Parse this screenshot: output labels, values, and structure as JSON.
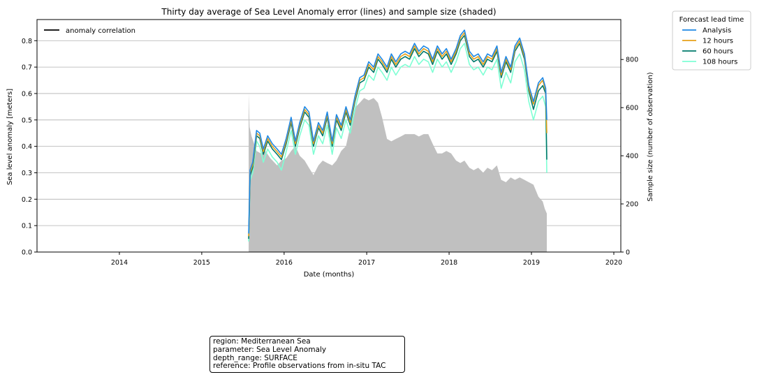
{
  "chart_data": {
    "type": "line",
    "title": "Thirty day average of Sea Level Anomaly error (lines) and sample size (shaded)",
    "xlabel": "Date (months)",
    "ylabel": "Sea level anomaly [meters]",
    "y2label": "Sample size (number of observation)",
    "xlim": [
      "2013-01-01",
      "2020-02-01"
    ],
    "ylim": [
      0.0,
      0.88
    ],
    "y2lim": [
      0,
      966
    ],
    "x_ticks": [
      "2014",
      "2015",
      "2016",
      "2017",
      "2018",
      "2019",
      "2020"
    ],
    "y_ticks": [
      "0.0",
      "0.1",
      "0.2",
      "0.3",
      "0.4",
      "0.5",
      "0.6",
      "0.7",
      "0.8"
    ],
    "y2_ticks": [
      "0",
      "200",
      "400",
      "600",
      "800"
    ],
    "grid": "horizontal",
    "legend_main": {
      "placement": "top-left",
      "label": "anomaly correlation",
      "color": "#000000"
    },
    "legend_lead": {
      "placement": "outside-top-right",
      "title": "Forecast lead time",
      "entries": [
        {
          "label": "Analysis",
          "color": "#1e88e5"
        },
        {
          "label": "12 hours",
          "color": "#e6a11a"
        },
        {
          "label": "60 hours",
          "color": "#00796b"
        },
        {
          "label": "108 hours",
          "color": "#7fffd4"
        }
      ]
    },
    "series": [
      {
        "name": "Analysis",
        "color": "#1e88e5",
        "x": [
          "2015-07-28",
          "2015-08-03",
          "2015-08-15",
          "2015-09-01",
          "2015-09-15",
          "2015-10-01",
          "2015-10-20",
          "2015-11-10",
          "2015-12-01",
          "2015-12-20",
          "2016-01-10",
          "2016-02-01",
          "2016-02-20",
          "2016-03-10",
          "2016-04-01",
          "2016-04-20",
          "2016-05-10",
          "2016-06-01",
          "2016-06-20",
          "2016-07-10",
          "2016-08-01",
          "2016-08-20",
          "2016-09-10",
          "2016-10-01",
          "2016-10-20",
          "2016-11-10",
          "2016-12-01",
          "2016-12-20",
          "2017-01-10",
          "2017-02-01",
          "2017-02-20",
          "2017-03-10",
          "2017-04-01",
          "2017-04-20",
          "2017-05-10",
          "2017-06-01",
          "2017-06-20",
          "2017-07-10",
          "2017-08-01",
          "2017-08-20",
          "2017-09-10",
          "2017-10-01",
          "2017-10-20",
          "2017-11-10",
          "2017-12-01",
          "2017-12-20",
          "2018-01-10",
          "2018-02-01",
          "2018-02-20",
          "2018-03-10",
          "2018-04-01",
          "2018-04-20",
          "2018-05-10",
          "2018-06-01",
          "2018-06-20",
          "2018-07-10",
          "2018-08-01",
          "2018-08-20",
          "2018-09-10",
          "2018-10-01",
          "2018-10-20",
          "2018-11-10",
          "2018-12-01",
          "2018-12-20",
          "2019-01-10",
          "2019-02-01",
          "2019-02-20",
          "2019-03-05",
          "2019-03-10"
        ],
        "values": [
          0.07,
          0.31,
          0.34,
          0.46,
          0.45,
          0.39,
          0.44,
          0.41,
          0.39,
          0.37,
          0.43,
          0.51,
          0.42,
          0.49,
          0.55,
          0.53,
          0.42,
          0.49,
          0.46,
          0.53,
          0.42,
          0.52,
          0.48,
          0.55,
          0.5,
          0.59,
          0.66,
          0.67,
          0.72,
          0.7,
          0.75,
          0.73,
          0.7,
          0.75,
          0.72,
          0.75,
          0.76,
          0.75,
          0.79,
          0.76,
          0.78,
          0.77,
          0.73,
          0.78,
          0.75,
          0.77,
          0.73,
          0.77,
          0.82,
          0.84,
          0.76,
          0.74,
          0.75,
          0.72,
          0.75,
          0.74,
          0.78,
          0.68,
          0.74,
          0.7,
          0.78,
          0.81,
          0.75,
          0.63,
          0.57,
          0.64,
          0.66,
          0.62,
          0.5
        ]
      },
      {
        "name": "12 hours",
        "color": "#e6a11a",
        "x": [
          "2015-07-28",
          "2015-08-03",
          "2015-08-15",
          "2015-09-01",
          "2015-09-15",
          "2015-10-01",
          "2015-10-20",
          "2015-11-10",
          "2015-12-01",
          "2015-12-20",
          "2016-01-10",
          "2016-02-01",
          "2016-02-20",
          "2016-03-10",
          "2016-04-01",
          "2016-04-20",
          "2016-05-10",
          "2016-06-01",
          "2016-06-20",
          "2016-07-10",
          "2016-08-01",
          "2016-08-20",
          "2016-09-10",
          "2016-10-01",
          "2016-10-20",
          "2016-11-10",
          "2016-12-01",
          "2016-12-20",
          "2017-01-10",
          "2017-02-01",
          "2017-02-20",
          "2017-03-10",
          "2017-04-01",
          "2017-04-20",
          "2017-05-10",
          "2017-06-01",
          "2017-06-20",
          "2017-07-10",
          "2017-08-01",
          "2017-08-20",
          "2017-09-10",
          "2017-10-01",
          "2017-10-20",
          "2017-11-10",
          "2017-12-01",
          "2017-12-20",
          "2018-01-10",
          "2018-02-01",
          "2018-02-20",
          "2018-03-10",
          "2018-04-01",
          "2018-04-20",
          "2018-05-10",
          "2018-06-01",
          "2018-06-20",
          "2018-07-10",
          "2018-08-01",
          "2018-08-20",
          "2018-09-10",
          "2018-10-01",
          "2018-10-20",
          "2018-11-10",
          "2018-12-01",
          "2018-12-20",
          "2019-01-10",
          "2019-02-01",
          "2019-02-20",
          "2019-03-05",
          "2019-03-10"
        ],
        "values": [
          0.06,
          0.3,
          0.33,
          0.45,
          0.44,
          0.38,
          0.43,
          0.4,
          0.38,
          0.36,
          0.42,
          0.5,
          0.41,
          0.48,
          0.54,
          0.52,
          0.41,
          0.48,
          0.45,
          0.52,
          0.41,
          0.51,
          0.47,
          0.54,
          0.49,
          0.58,
          0.65,
          0.66,
          0.71,
          0.69,
          0.74,
          0.72,
          0.69,
          0.74,
          0.71,
          0.74,
          0.75,
          0.74,
          0.78,
          0.75,
          0.77,
          0.76,
          0.72,
          0.77,
          0.74,
          0.76,
          0.72,
          0.76,
          0.81,
          0.83,
          0.75,
          0.73,
          0.74,
          0.71,
          0.74,
          0.73,
          0.77,
          0.67,
          0.73,
          0.69,
          0.77,
          0.8,
          0.74,
          0.62,
          0.56,
          0.63,
          0.65,
          0.61,
          0.45
        ]
      },
      {
        "name": "60 hours",
        "color": "#00796b",
        "x": [
          "2015-07-28",
          "2015-08-03",
          "2015-08-15",
          "2015-09-01",
          "2015-09-15",
          "2015-10-01",
          "2015-10-20",
          "2015-11-10",
          "2015-12-01",
          "2015-12-20",
          "2016-01-10",
          "2016-02-01",
          "2016-02-20",
          "2016-03-10",
          "2016-04-01",
          "2016-04-20",
          "2016-05-10",
          "2016-06-01",
          "2016-06-20",
          "2016-07-10",
          "2016-08-01",
          "2016-08-20",
          "2016-09-10",
          "2016-10-01",
          "2016-10-20",
          "2016-11-10",
          "2016-12-01",
          "2016-12-20",
          "2017-01-10",
          "2017-02-01",
          "2017-02-20",
          "2017-03-10",
          "2017-04-01",
          "2017-04-20",
          "2017-05-10",
          "2017-06-01",
          "2017-06-20",
          "2017-07-10",
          "2017-08-01",
          "2017-08-20",
          "2017-09-10",
          "2017-10-01",
          "2017-10-20",
          "2017-11-10",
          "2017-12-01",
          "2017-12-20",
          "2018-01-10",
          "2018-02-01",
          "2018-02-20",
          "2018-03-10",
          "2018-04-01",
          "2018-04-20",
          "2018-05-10",
          "2018-06-01",
          "2018-06-20",
          "2018-07-10",
          "2018-08-01",
          "2018-08-20",
          "2018-09-10",
          "2018-10-01",
          "2018-10-20",
          "2018-11-10",
          "2018-12-01",
          "2018-12-20",
          "2019-01-10",
          "2019-02-01",
          "2019-02-20",
          "2019-03-05",
          "2019-03-10"
        ],
        "values": [
          0.05,
          0.29,
          0.32,
          0.44,
          0.43,
          0.37,
          0.42,
          0.39,
          0.37,
          0.35,
          0.41,
          0.49,
          0.4,
          0.47,
          0.53,
          0.51,
          0.4,
          0.47,
          0.44,
          0.51,
          0.4,
          0.5,
          0.46,
          0.53,
          0.48,
          0.57,
          0.64,
          0.65,
          0.7,
          0.68,
          0.73,
          0.71,
          0.68,
          0.73,
          0.7,
          0.73,
          0.74,
          0.73,
          0.77,
          0.74,
          0.76,
          0.75,
          0.71,
          0.76,
          0.73,
          0.75,
          0.71,
          0.75,
          0.8,
          0.82,
          0.74,
          0.72,
          0.73,
          0.7,
          0.73,
          0.72,
          0.76,
          0.66,
          0.72,
          0.68,
          0.76,
          0.79,
          0.73,
          0.61,
          0.54,
          0.61,
          0.63,
          0.6,
          0.35
        ]
      },
      {
        "name": "108 hours",
        "color": "#7fffd4",
        "x": [
          "2015-07-28",
          "2015-08-03",
          "2015-08-15",
          "2015-09-01",
          "2015-09-15",
          "2015-10-01",
          "2015-10-20",
          "2015-11-10",
          "2015-12-01",
          "2015-12-20",
          "2016-01-10",
          "2016-02-01",
          "2016-02-20",
          "2016-03-10",
          "2016-04-01",
          "2016-04-20",
          "2016-05-10",
          "2016-06-01",
          "2016-06-20",
          "2016-07-10",
          "2016-08-01",
          "2016-08-20",
          "2016-09-10",
          "2016-10-01",
          "2016-10-20",
          "2016-11-10",
          "2016-12-01",
          "2016-12-20",
          "2017-01-10",
          "2017-02-01",
          "2017-02-20",
          "2017-03-10",
          "2017-04-01",
          "2017-04-20",
          "2017-05-10",
          "2017-06-01",
          "2017-06-20",
          "2017-07-10",
          "2017-08-01",
          "2017-08-20",
          "2017-09-10",
          "2017-10-01",
          "2017-10-20",
          "2017-11-10",
          "2017-12-01",
          "2017-12-20",
          "2018-01-10",
          "2018-02-01",
          "2018-02-20",
          "2018-03-10",
          "2018-04-01",
          "2018-04-20",
          "2018-05-10",
          "2018-06-01",
          "2018-06-20",
          "2018-07-10",
          "2018-08-01",
          "2018-08-20",
          "2018-09-10",
          "2018-10-01",
          "2018-10-20",
          "2018-11-10",
          "2018-12-01",
          "2018-12-20",
          "2019-01-10",
          "2019-02-01",
          "2019-02-20",
          "2019-03-05",
          "2019-03-10"
        ],
        "values": [
          0.04,
          0.27,
          0.3,
          0.42,
          0.4,
          0.34,
          0.39,
          0.36,
          0.34,
          0.31,
          0.38,
          0.46,
          0.37,
          0.44,
          0.5,
          0.48,
          0.37,
          0.44,
          0.41,
          0.48,
          0.37,
          0.47,
          0.43,
          0.5,
          0.45,
          0.54,
          0.61,
          0.62,
          0.67,
          0.65,
          0.7,
          0.68,
          0.65,
          0.7,
          0.67,
          0.7,
          0.71,
          0.7,
          0.74,
          0.71,
          0.73,
          0.72,
          0.68,
          0.73,
          0.7,
          0.72,
          0.68,
          0.72,
          0.77,
          0.79,
          0.71,
          0.69,
          0.7,
          0.67,
          0.7,
          0.69,
          0.73,
          0.62,
          0.68,
          0.64,
          0.72,
          0.75,
          0.69,
          0.57,
          0.5,
          0.57,
          0.59,
          0.55,
          0.3
        ]
      }
    ],
    "sample_size": {
      "name": "sample size (shaded)",
      "color": "#c0c0c0",
      "x": [
        "2015-07-28",
        "2015-08-01",
        "2015-08-10",
        "2015-09-01",
        "2015-09-20",
        "2015-10-10",
        "2015-11-01",
        "2015-12-01",
        "2015-12-20",
        "2016-01-10",
        "2016-02-01",
        "2016-02-20",
        "2016-03-10",
        "2016-04-01",
        "2016-04-20",
        "2016-05-10",
        "2016-06-01",
        "2016-06-20",
        "2016-07-10",
        "2016-08-01",
        "2016-08-20",
        "2016-09-10",
        "2016-10-01",
        "2016-10-20",
        "2016-11-10",
        "2016-12-01",
        "2016-12-20",
        "2017-01-10",
        "2017-02-01",
        "2017-02-20",
        "2017-03-10",
        "2017-04-01",
        "2017-04-20",
        "2017-05-10",
        "2017-06-01",
        "2017-06-20",
        "2017-07-10",
        "2017-08-01",
        "2017-08-20",
        "2017-09-10",
        "2017-10-01",
        "2017-10-20",
        "2017-11-10",
        "2017-12-01",
        "2017-12-20",
        "2018-01-10",
        "2018-02-01",
        "2018-02-20",
        "2018-03-10",
        "2018-04-01",
        "2018-04-20",
        "2018-05-10",
        "2018-06-01",
        "2018-06-20",
        "2018-07-10",
        "2018-08-01",
        "2018-08-20",
        "2018-09-10",
        "2018-10-01",
        "2018-10-20",
        "2018-11-10",
        "2018-12-01",
        "2018-12-20",
        "2019-01-10",
        "2019-02-01",
        "2019-02-20",
        "2019-03-01",
        "2019-03-10"
      ],
      "values": [
        660,
        520,
        480,
        420,
        410,
        420,
        390,
        360,
        380,
        390,
        420,
        440,
        400,
        380,
        350,
        320,
        360,
        380,
        370,
        360,
        380,
        420,
        440,
        520,
        600,
        620,
        640,
        630,
        640,
        620,
        560,
        470,
        460,
        470,
        480,
        490,
        490,
        490,
        480,
        490,
        490,
        450,
        410,
        410,
        420,
        410,
        380,
        370,
        380,
        350,
        340,
        350,
        330,
        350,
        340,
        360,
        300,
        290,
        310,
        300,
        310,
        300,
        290,
        280,
        230,
        210,
        180,
        160
      ]
    }
  },
  "info_box": {
    "region": "region: Mediterranean Sea",
    "parameter": "parameter: Sea Level Anomaly",
    "depth_range": "depth_range: SURFACE",
    "reference": "reference: Profile observations from in-situ TAC"
  }
}
